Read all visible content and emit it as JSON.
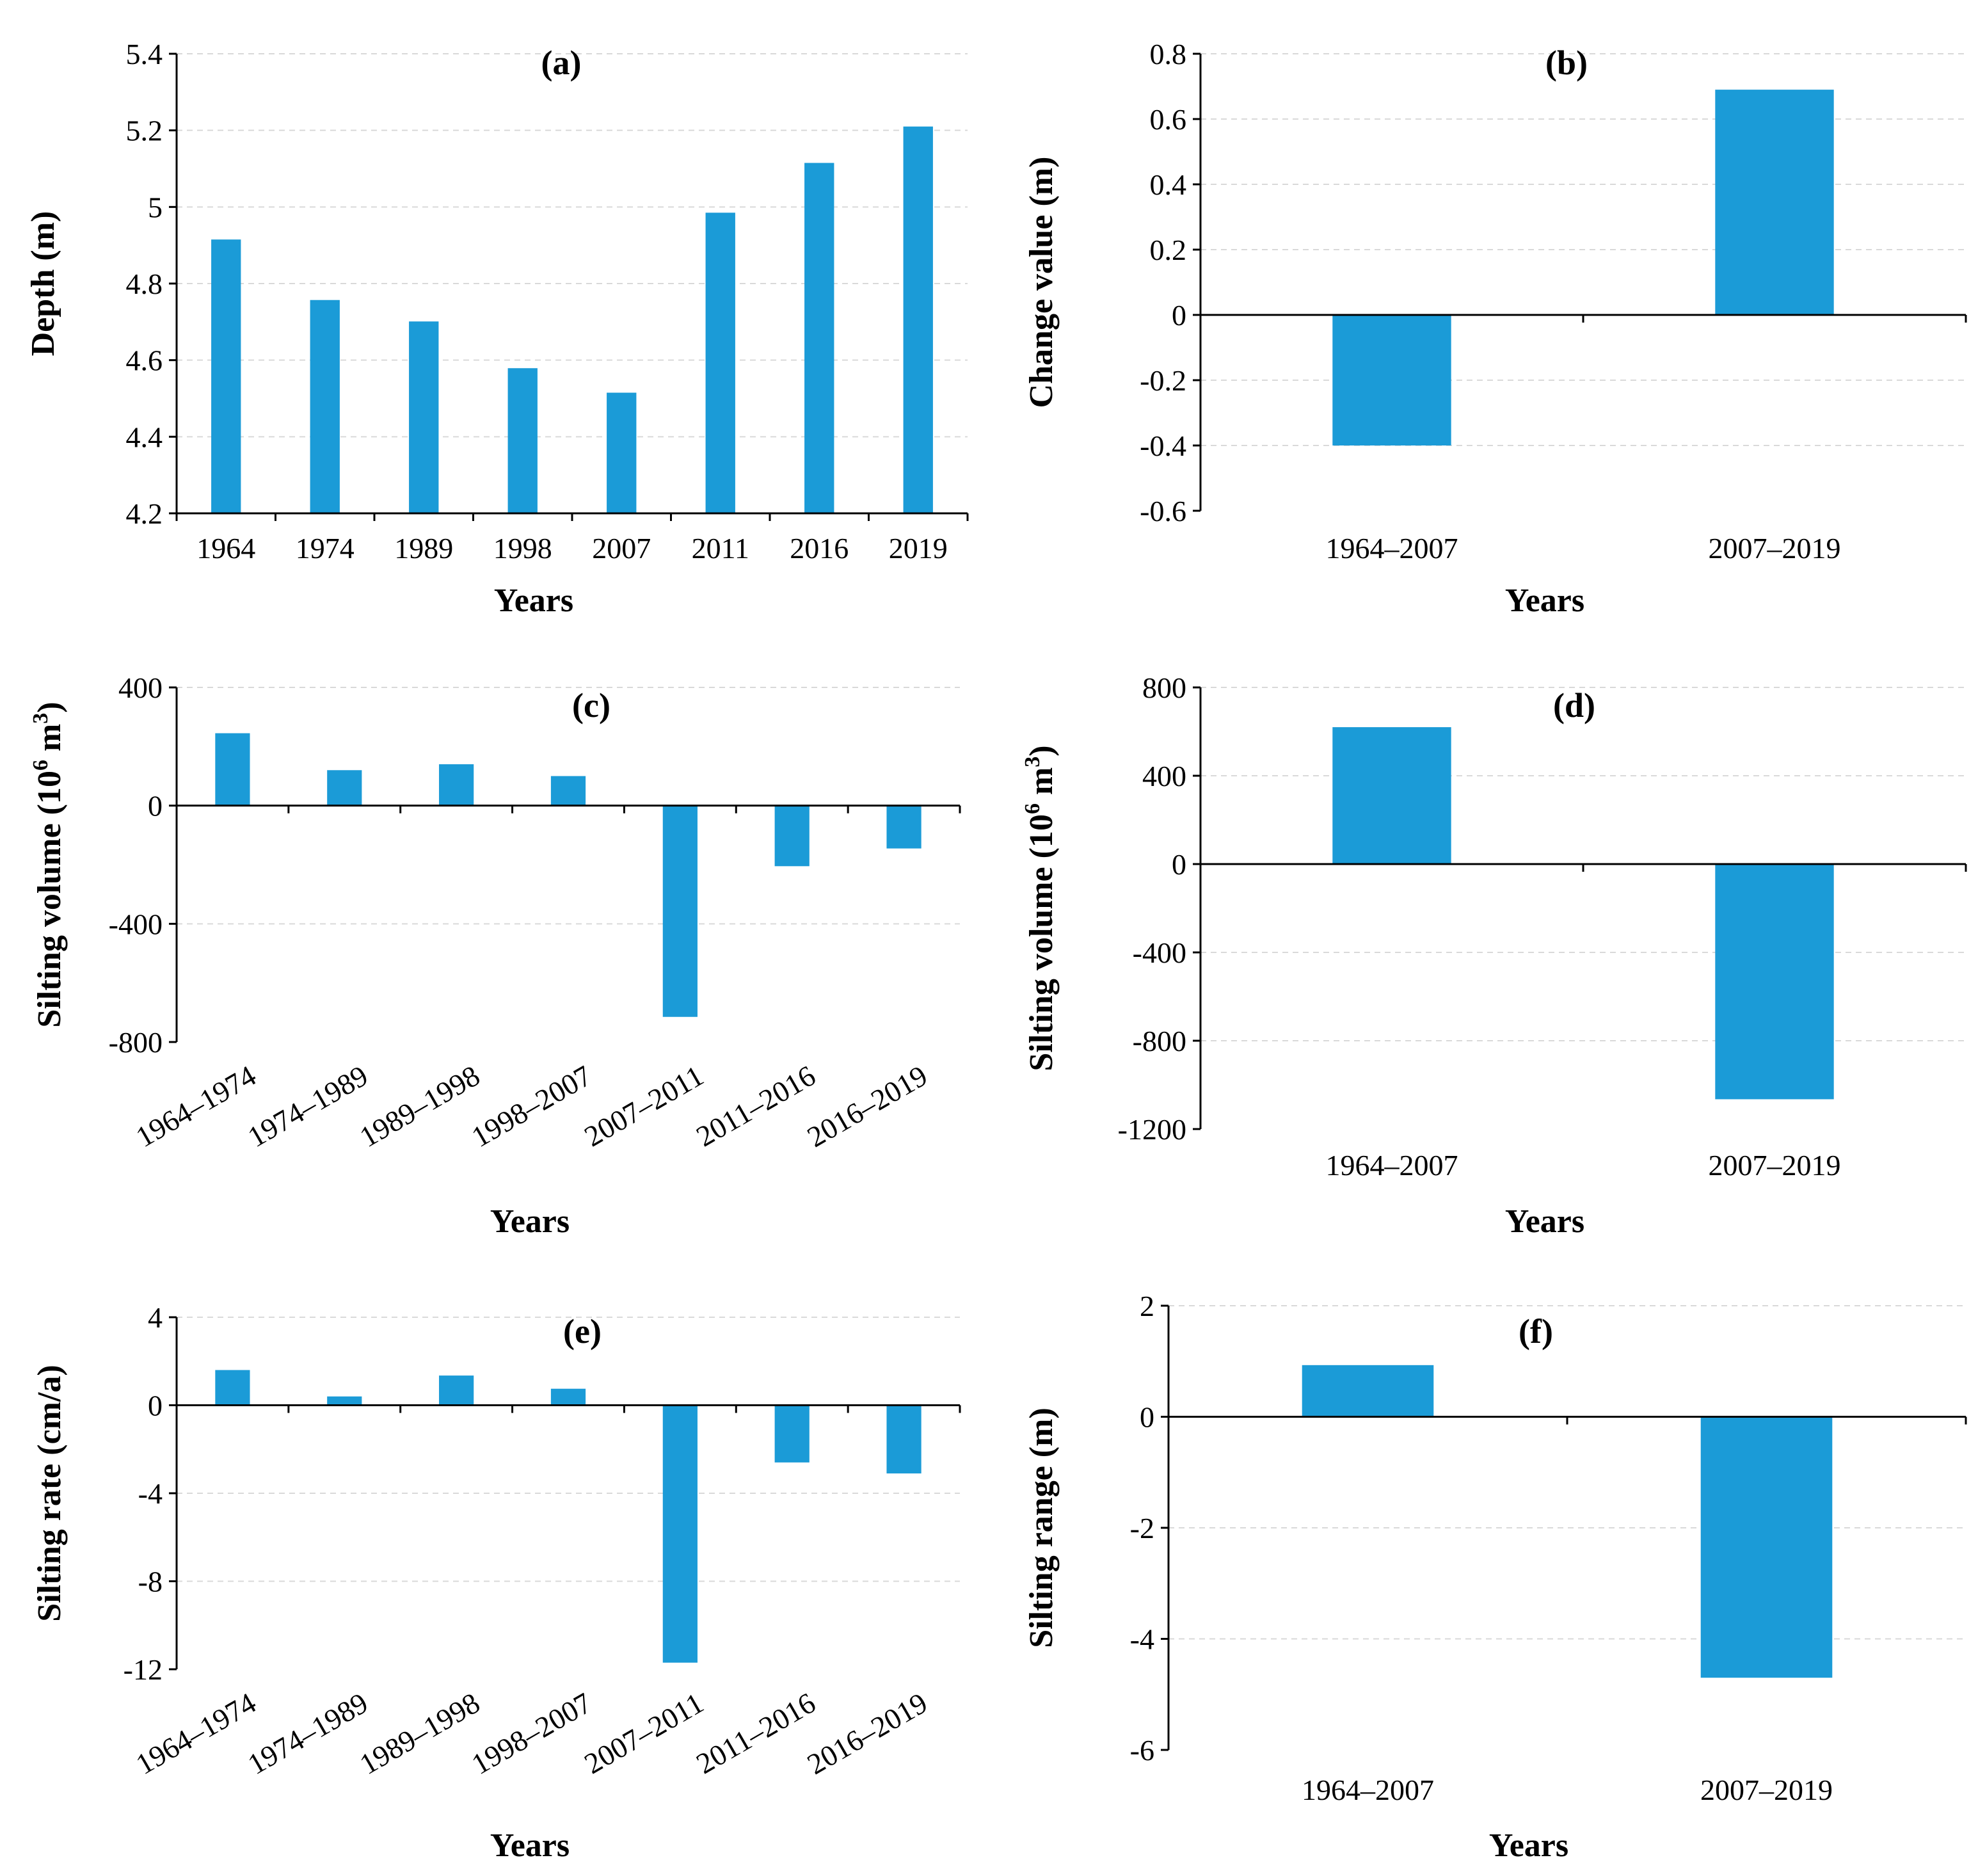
{
  "chart_data": [
    {
      "id": "a",
      "type": "bar",
      "tag": "(a)",
      "xlabel": "Years",
      "ylabel": "Depth (m)",
      "ylim": [
        4.2,
        5.4
      ],
      "yticks": [
        "5.4",
        "5.2",
        "5",
        "4.8",
        "4.6",
        "4.4",
        "4.2"
      ],
      "ytick_values": [
        5.4,
        5.2,
        5.0,
        4.8,
        4.6,
        4.4,
        4.2
      ],
      "categories": [
        "1964",
        "1974",
        "1989",
        "1998",
        "2007",
        "2011",
        "2016",
        "2019"
      ],
      "values": [
        4.915,
        4.757,
        4.701,
        4.579,
        4.515,
        4.985,
        5.115,
        5.21
      ],
      "grid": true
    },
    {
      "id": "b",
      "type": "bar",
      "tag": "(b)",
      "xlabel": "Years",
      "ylabel": "Change value (m)",
      "ylim": [
        -0.6,
        0.8
      ],
      "yticks": [
        "0.8",
        "0.6",
        "0.4",
        "0.2",
        "0",
        "-0.2",
        "-0.4",
        "-0.6"
      ],
      "ytick_values": [
        0.8,
        0.6,
        0.4,
        0.2,
        0,
        -0.2,
        -0.4,
        -0.6
      ],
      "categories": [
        "1964–2007",
        "2007–2019"
      ],
      "values": [
        -0.4,
        0.69
      ],
      "grid": true
    },
    {
      "id": "c",
      "type": "bar",
      "tag": "(c)",
      "xlabel": "Years",
      "ylabel_main": "Silting volume (10",
      "ylabel_sup": "6",
      "ylabel_mid": " m",
      "ylabel_sup2": "3",
      "ylabel_end": ")",
      "ylim": [
        -800,
        400
      ],
      "yticks": [
        "400",
        "0",
        "-400",
        "-800"
      ],
      "ytick_values": [
        400,
        0,
        -400,
        -800
      ],
      "categories": [
        "1964–1974",
        "1974–1989",
        "1989–1998",
        "1998–2007",
        "2007–2011",
        "2011–2016",
        "2016–2019"
      ],
      "values": [
        245,
        120,
        140,
        100,
        -715,
        -205,
        -145
      ],
      "grid": true
    },
    {
      "id": "d",
      "type": "bar",
      "tag": "(d)",
      "xlabel": "Years",
      "ylabel_main": "Silting volume (10",
      "ylabel_sup": "6",
      "ylabel_mid": " m",
      "ylabel_sup2": "3",
      "ylabel_end": ")",
      "ylim": [
        -1200,
        800
      ],
      "yticks": [
        "800",
        "400",
        "0",
        "-400",
        "-800",
        "-1200"
      ],
      "ytick_values": [
        800,
        400,
        0,
        -400,
        -800,
        -1200
      ],
      "categories": [
        "1964–2007",
        "2007–2019"
      ],
      "values": [
        620,
        -1065
      ],
      "grid": true
    },
    {
      "id": "e",
      "type": "bar",
      "tag": "(e)",
      "xlabel": "Years",
      "ylabel": "Silting rate (cm/a)",
      "ylim": [
        -12,
        4
      ],
      "yticks": [
        "4",
        "0",
        "-4",
        "-8",
        "-12"
      ],
      "ytick_values": [
        4,
        0,
        -4,
        -8,
        -12
      ],
      "categories": [
        "1964–1974",
        "1974–1989",
        "1989–1998",
        "1998–2007",
        "2007–2011",
        "2011–2016",
        "2016–2019"
      ],
      "values": [
        1.6,
        0.4,
        1.35,
        0.75,
        -11.7,
        -2.6,
        -3.1
      ],
      "grid": true
    },
    {
      "id": "f",
      "type": "bar",
      "tag": "(f)",
      "xlabel": "Years",
      "ylabel": "Silting range (m)",
      "ylim": [
        -6,
        2
      ],
      "yticks": [
        "2",
        "0",
        "-2",
        "-4",
        "-6"
      ],
      "ytick_values": [
        2,
        0,
        -2,
        -4,
        -6
      ],
      "categories": [
        "1964–2007",
        "2007–2019"
      ],
      "values": [
        0.93,
        -4.7
      ],
      "grid": true
    }
  ],
  "colors": {
    "bar": "#1b9bd7",
    "grid": "#d9d9d9",
    "axis": "#000000"
  }
}
